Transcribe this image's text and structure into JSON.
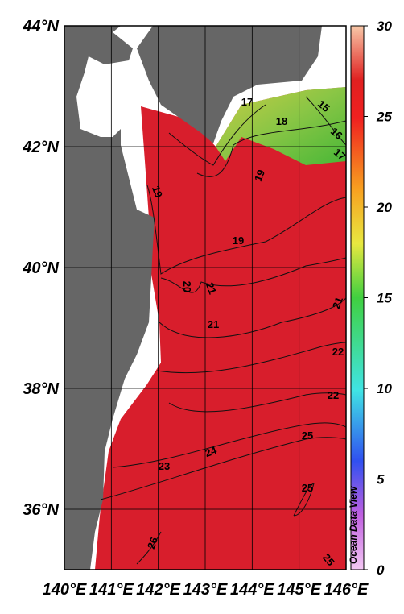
{
  "map": {
    "lat_ticks": [
      {
        "value": 44,
        "label": "44°N"
      },
      {
        "value": 42,
        "label": "42°N"
      },
      {
        "value": 40,
        "label": "40°N"
      },
      {
        "value": 38,
        "label": "38°N"
      },
      {
        "value": 36,
        "label": "36°N"
      }
    ],
    "lon_ticks": [
      {
        "value": 140,
        "label": "140°E"
      },
      {
        "value": 141,
        "label": "141°E"
      },
      {
        "value": 142,
        "label": "142°E"
      },
      {
        "value": 143,
        "label": "143°E"
      },
      {
        "value": 144,
        "label": "144°E"
      },
      {
        "value": 145,
        "label": "145°E"
      },
      {
        "value": 146,
        "label": "146°E"
      }
    ],
    "latlim": [
      35,
      44
    ],
    "lonlim": [
      140,
      146
    ],
    "colorbar": {
      "lim": [
        0,
        30
      ],
      "ticks": [
        0,
        5,
        10,
        15,
        20,
        25,
        30
      ]
    },
    "contour_labels": [
      17,
      18,
      15,
      16,
      17,
      19,
      19,
      19,
      20,
      21,
      21,
      21,
      22,
      22,
      23,
      24,
      25,
      25,
      26,
      25
    ],
    "credit": "Ocean Data View"
  }
}
